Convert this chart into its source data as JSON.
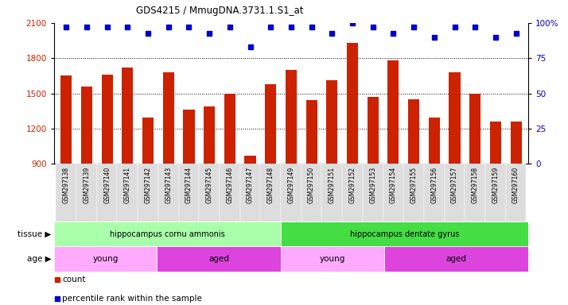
{
  "title": "GDS4215 / MmugDNA.3731.1.S1_at",
  "samples": [
    "GSM297138",
    "GSM297139",
    "GSM297140",
    "GSM297141",
    "GSM297142",
    "GSM297143",
    "GSM297144",
    "GSM297145",
    "GSM297146",
    "GSM297147",
    "GSM297148",
    "GSM297149",
    "GSM297150",
    "GSM297151",
    "GSM297152",
    "GSM297153",
    "GSM297154",
    "GSM297155",
    "GSM297156",
    "GSM297157",
    "GSM297158",
    "GSM297159",
    "GSM297160"
  ],
  "counts": [
    1650,
    1560,
    1660,
    1720,
    1290,
    1680,
    1360,
    1390,
    1500,
    970,
    1580,
    1700,
    1440,
    1610,
    1930,
    1470,
    1780,
    1450,
    1290,
    1680,
    1500,
    1260,
    1260
  ],
  "percentiles": [
    97,
    97,
    97,
    97,
    93,
    97,
    97,
    93,
    97,
    83,
    97,
    97,
    97,
    93,
    100,
    97,
    93,
    97,
    90,
    97,
    97,
    90,
    93
  ],
  "bar_color": "#cc2200",
  "dot_color": "#0000cc",
  "ylim_left": [
    900,
    2100
  ],
  "ylim_right": [
    0,
    100
  ],
  "yticks_left": [
    900,
    1200,
    1500,
    1800,
    2100
  ],
  "yticks_right": [
    0,
    25,
    50,
    75,
    100
  ],
  "right_ytick_labels": [
    "0",
    "25",
    "50",
    "75",
    "100%"
  ],
  "grid_vals": [
    1200,
    1500,
    1800
  ],
  "tissue_groups": [
    {
      "label": "hippocampus cornu ammonis",
      "start": 0,
      "end": 11,
      "color": "#aaffaa"
    },
    {
      "label": "hippocampus dentate gyrus",
      "start": 11,
      "end": 23,
      "color": "#44dd44"
    }
  ],
  "age_groups": [
    {
      "label": "young",
      "start": 0,
      "end": 5,
      "color": "#ffaaff"
    },
    {
      "label": "aged",
      "start": 5,
      "end": 11,
      "color": "#dd44dd"
    },
    {
      "label": "young",
      "start": 11,
      "end": 16,
      "color": "#ffaaff"
    },
    {
      "label": "aged",
      "start": 16,
      "end": 23,
      "color": "#dd44dd"
    }
  ],
  "tissue_label": "tissue",
  "age_label": "age",
  "background_color": "#ffffff",
  "xticklabel_bg": "#dddddd",
  "fig_width": 7.14,
  "fig_height": 3.84
}
